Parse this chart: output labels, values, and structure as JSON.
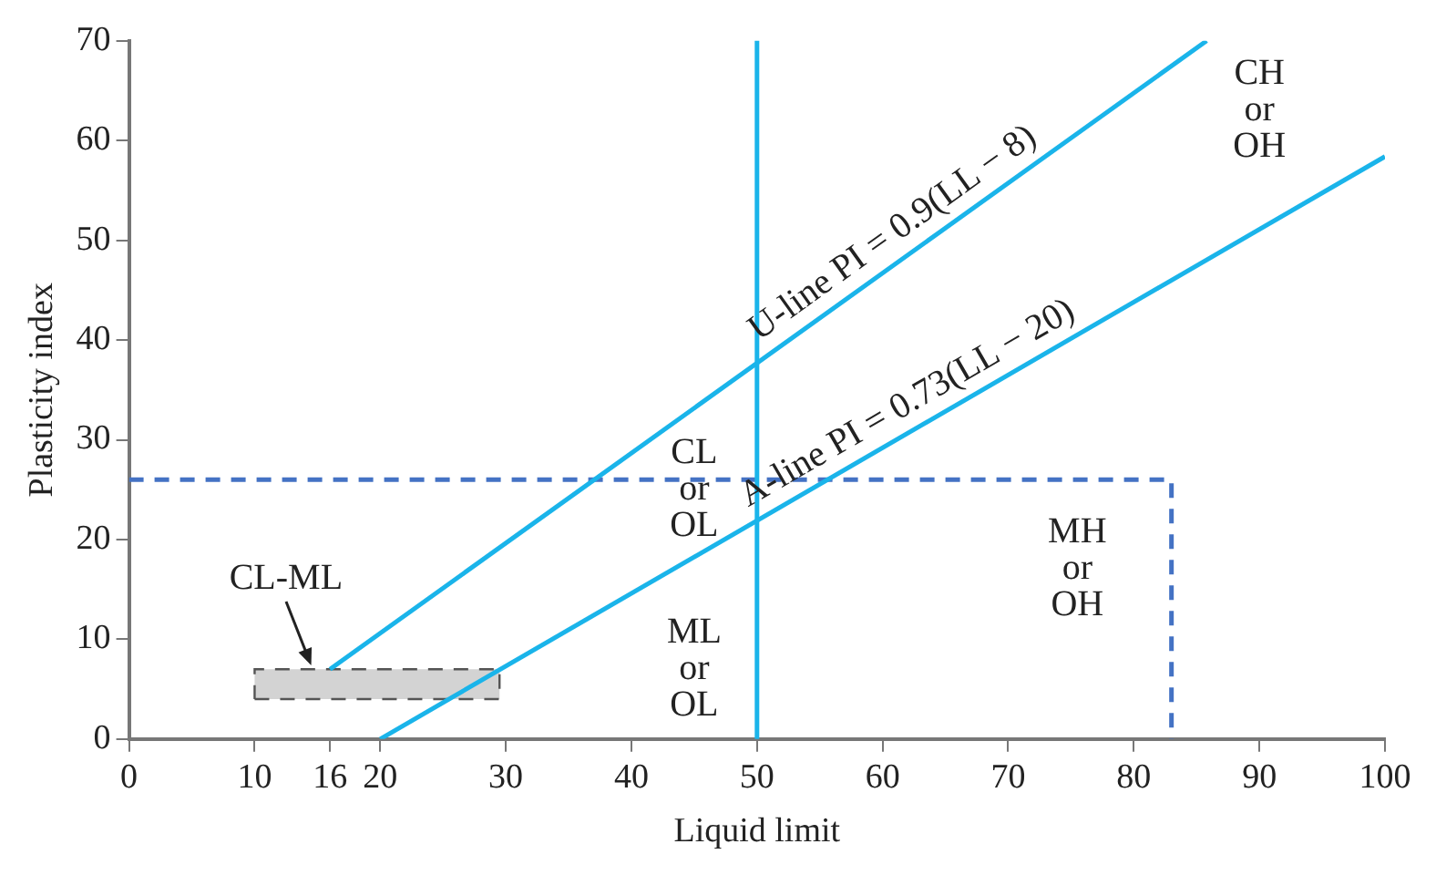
{
  "chart_data": {
    "type": "line",
    "xlabel": "Liquid limit",
    "ylabel": "Plasticity index",
    "xlim": [
      0,
      100
    ],
    "xticks": [
      0,
      10,
      16,
      20,
      30,
      40,
      50,
      60,
      70,
      80,
      90,
      100
    ],
    "ylim": [
      0,
      70
    ],
    "yticks": [
      0,
      10,
      20,
      30,
      40,
      50,
      60,
      70
    ],
    "grid": false,
    "legend": false,
    "marker": "none",
    "series": [
      {
        "color": "#1ab4ea",
        "x": [
          16,
          85.8
        ],
        "values": [
          7,
          70
        ]
      },
      {
        "color": "#1ab4ea",
        "x": [
          20,
          100
        ],
        "values": [
          0,
          58.4
        ]
      },
      {
        "color": "#4472c4",
        "line_style": "dashed",
        "x": [
          0,
          83,
          83
        ],
        "values": [
          26,
          26,
          0
        ]
      },
      {
        "type": "area",
        "color": "#d3d3d3",
        "line_style": "dashed",
        "x": [
          10,
          29.5,
          29.5,
          10,
          10
        ],
        "values": [
          4,
          4,
          7,
          7,
          4
        ]
      }
    ],
    "ref_lines": [
      {
        "axis": "x",
        "value": 50,
        "color": "#1ab4ea"
      }
    ],
    "annotations": [
      {
        "text": "U-line PI = 0.9(LL − 8)",
        "x": 62,
        "y": 48.6
      },
      {
        "text": "A-line PI = 0.73(LL − 20)",
        "x": 63,
        "y": 31.4
      },
      "CL\nor\nOL",
      "ML\nor\nOL",
      "MH\nor\nOH",
      "CH\nor\nOH",
      "CL-ML"
    ]
  }
}
